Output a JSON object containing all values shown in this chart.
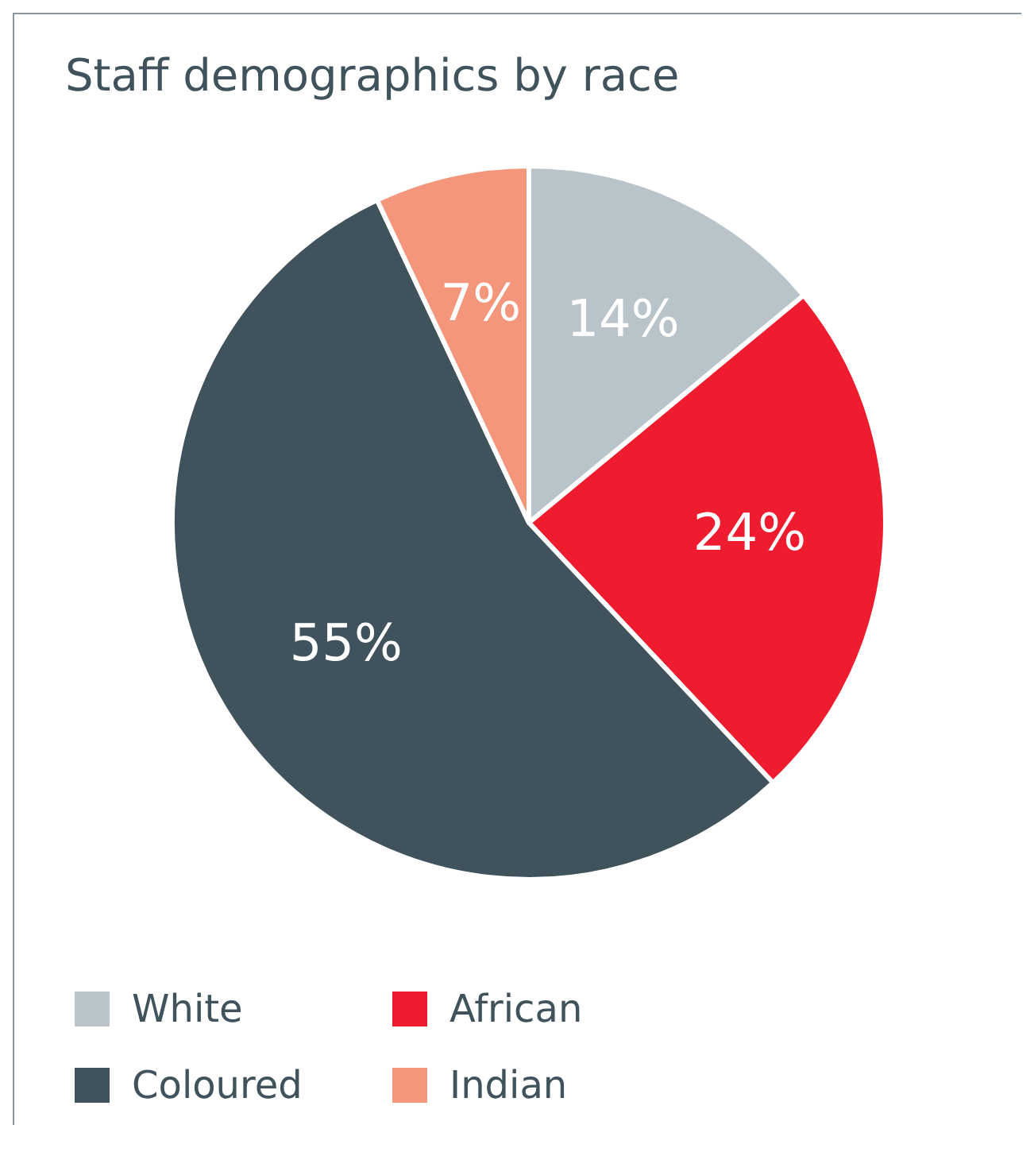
{
  "chart_data": {
    "type": "pie",
    "title": "Staff demographics by race",
    "categories": [
      "White",
      "African",
      "Coloured",
      "Indian"
    ],
    "values": [
      14,
      24,
      55,
      7
    ],
    "value_labels": [
      "14%",
      "24%",
      "55%",
      "7%"
    ],
    "colors": [
      "#b8c3ca",
      "#ee1c2e",
      "#40525c",
      "#f4967c"
    ],
    "legend": "bottom"
  }
}
